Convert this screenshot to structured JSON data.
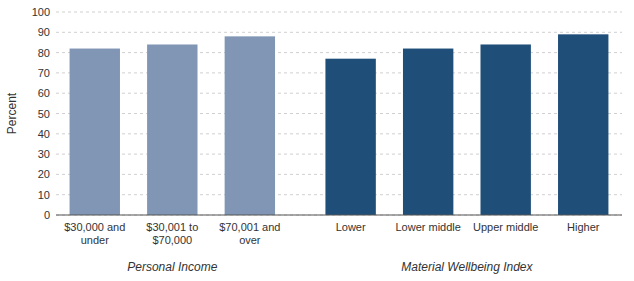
{
  "chart_data": {
    "type": "bar",
    "categories": [
      "$30,000 and\nunder",
      "$30,001 to\n$70,000",
      "$70,001 and\nover",
      "Lower",
      "Lower middle",
      "Upper middle",
      "Higher"
    ],
    "values": [
      82,
      84,
      88,
      77,
      82,
      84,
      89
    ],
    "colors": [
      "#8096b4",
      "#8096b4",
      "#8096b4",
      "#1f4e79",
      "#1f4e79",
      "#1f4e79",
      "#1f4e79"
    ],
    "ylabel": "Percent",
    "ylim": [
      0,
      100
    ],
    "yticks": [
      0,
      10,
      20,
      30,
      40,
      50,
      60,
      70,
      80,
      90,
      100
    ],
    "grid": true,
    "annotations": [
      "Personal Income",
      "Material Wellbeing Index"
    ]
  }
}
